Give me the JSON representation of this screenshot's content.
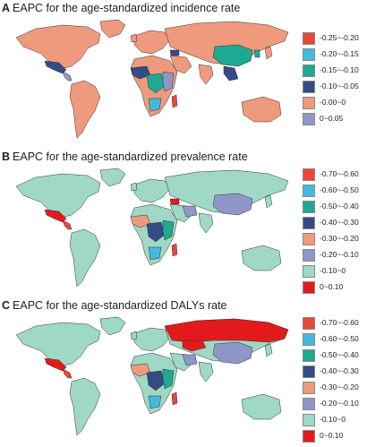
{
  "panels": [
    {
      "letter": "A",
      "title": "EAPC for the age-standardized incidence rate",
      "legend": [
        {
          "label": "-0.25~-0.20",
          "color": "#e8473a"
        },
        {
          "label": "-0.20~-0.15",
          "color": "#45b8dd"
        },
        {
          "label": "-0.15~-0.10",
          "color": "#1fa892"
        },
        {
          "label": "-0.10~-0.05",
          "color": "#344b86"
        },
        {
          "label": "-0.00~0",
          "color": "#ef9a7d"
        },
        {
          "label": "0~0.05",
          "color": "#8e97c8"
        }
      ],
      "base_color": "#ef9a7d",
      "regions": [
        {
          "name": "china",
          "color": "#1fa892"
        },
        {
          "name": "mexico",
          "color": "#344b86"
        },
        {
          "name": "central-america",
          "color": "#8e97c8"
        },
        {
          "name": "west-africa",
          "color": "#344b86"
        },
        {
          "name": "central-africa",
          "color": "#1fa892"
        },
        {
          "name": "east-africa",
          "color": "#8e97c8"
        },
        {
          "name": "south-africa",
          "color": "#45b8dd"
        },
        {
          "name": "madagascar",
          "color": "#e8473a"
        },
        {
          "name": "southeast-asia",
          "color": "#344b86"
        },
        {
          "name": "korea",
          "color": "#1fa892"
        },
        {
          "name": "caucasus",
          "color": "#344b86"
        }
      ]
    },
    {
      "letter": "B",
      "title": "EAPC for the age-standardized prevalence rate",
      "legend": [
        {
          "label": "-0.70~-0.60",
          "color": "#e8473a"
        },
        {
          "label": "-0.60~-0.50",
          "color": "#45b8dd"
        },
        {
          "label": "-0.50~-0.40",
          "color": "#1fa892"
        },
        {
          "label": "-0.40~-0.30",
          "color": "#344b86"
        },
        {
          "label": "-0.30~-0.20",
          "color": "#ef9a7d"
        },
        {
          "label": "-0.20~-0.10",
          "color": "#8e97c8"
        },
        {
          "label": "-0.10~0",
          "color": "#9fd8c4"
        },
        {
          "label": "0~0.10",
          "color": "#e31a1c"
        }
      ],
      "base_color": "#9fd8c4",
      "regions": [
        {
          "name": "mexico",
          "color": "#e31a1c"
        },
        {
          "name": "central-america",
          "color": "#e8473a"
        },
        {
          "name": "china",
          "color": "#8e97c8"
        },
        {
          "name": "west-africa",
          "color": "#ef9a7d"
        },
        {
          "name": "central-africa",
          "color": "#344b86"
        },
        {
          "name": "east-africa",
          "color": "#1fa892"
        },
        {
          "name": "south-africa",
          "color": "#45b8dd"
        },
        {
          "name": "madagascar",
          "color": "#e8473a"
        },
        {
          "name": "iran",
          "color": "#8e97c8"
        },
        {
          "name": "caucasus",
          "color": "#e31a1c"
        }
      ]
    },
    {
      "letter": "C",
      "title": "EAPC for the age-standardized DALYs rate",
      "legend": [
        {
          "label": "-0.70~-0.60",
          "color": "#e8473a"
        },
        {
          "label": "-0.60~-0.50",
          "color": "#45b8dd"
        },
        {
          "label": "-0.50~-0.40",
          "color": "#1fa892"
        },
        {
          "label": "-0.40~-0.30",
          "color": "#344b86"
        },
        {
          "label": "-0.30~-0.20",
          "color": "#ef9a7d"
        },
        {
          "label": "-0.20~-0.10",
          "color": "#8e97c8"
        },
        {
          "label": "-0.10~0",
          "color": "#9fd8c4"
        },
        {
          "label": "0~0.10",
          "color": "#e31a1c"
        }
      ],
      "base_color": "#9fd8c4",
      "regions": [
        {
          "name": "russia",
          "color": "#e31a1c"
        },
        {
          "name": "mexico",
          "color": "#e31a1c"
        },
        {
          "name": "central-america",
          "color": "#e8473a"
        },
        {
          "name": "china",
          "color": "#8e97c8"
        },
        {
          "name": "west-africa",
          "color": "#ef9a7d"
        },
        {
          "name": "central-africa",
          "color": "#344b86"
        },
        {
          "name": "east-africa",
          "color": "#1fa892"
        },
        {
          "name": "south-africa",
          "color": "#45b8dd"
        },
        {
          "name": "madagascar",
          "color": "#e8473a"
        },
        {
          "name": "kazakhstan",
          "color": "#e31a1c"
        },
        {
          "name": "iran",
          "color": "#8e97c8"
        }
      ]
    }
  ]
}
